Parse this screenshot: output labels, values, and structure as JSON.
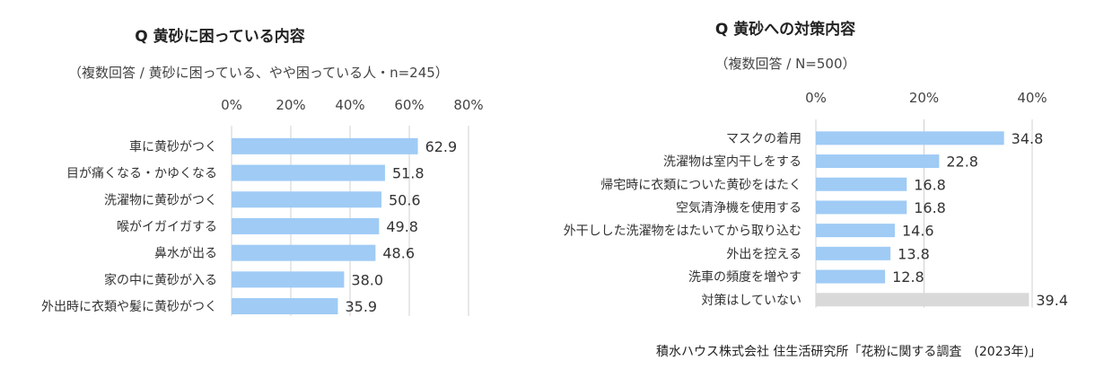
{
  "chart_data": [
    {
      "type": "bar",
      "orientation": "horizontal",
      "title": "Q 黄砂に困っている内容",
      "subtitle": "（複数回答 / 黄砂に困っている、やや困っている人・n=245）",
      "categories": [
        "車に黄砂がつく",
        "目が痛くなる・かゆくなる",
        "洗濯物に黄砂がつく",
        "喉がイガイガする",
        "鼻水が出る",
        "家の中に黄砂が入る",
        "外出時に衣類や髪に黄砂がつく"
      ],
      "values": [
        62.9,
        51.8,
        50.6,
        49.8,
        48.6,
        38.0,
        35.9
      ],
      "value_labels": [
        "62.9",
        "51.8",
        "50.6",
        "49.8",
        "48.6",
        "38.0",
        "35.9"
      ],
      "xlim": [
        0,
        80
      ],
      "ticks": [
        0,
        20,
        40,
        60,
        80
      ],
      "tick_labels": [
        "0%",
        "20%",
        "40%",
        "60%",
        "80%"
      ],
      "grid": true,
      "colors": [
        "#9fcbf5"
      ]
    },
    {
      "type": "bar",
      "orientation": "horizontal",
      "title": "Q 黄砂への対策内容",
      "subtitle": "（複数回答 / N=500）",
      "categories": [
        "マスクの着用",
        "洗濯物は室内干しをする",
        "帰宅時に衣類についた黄砂をはたく",
        "空気清浄機を使用する",
        "外干しした洗濯物をはたいてから取り込む",
        "外出を控える",
        "洗車の頻度を増やす",
        "対策はしていない"
      ],
      "values": [
        34.8,
        22.8,
        16.8,
        16.8,
        14.6,
        13.8,
        12.8,
        39.4
      ],
      "value_labels": [
        "34.8",
        "22.8",
        "16.8",
        "16.8",
        "14.6",
        "13.8",
        "12.8",
        "39.4"
      ],
      "xlim": [
        0,
        40
      ],
      "ticks": [
        0,
        20,
        40
      ],
      "tick_labels": [
        "0%",
        "20%",
        "40%"
      ],
      "grid": true,
      "colors": [
        "#9fcbf5",
        "#9fcbf5",
        "#9fcbf5",
        "#9fcbf5",
        "#9fcbf5",
        "#9fcbf5",
        "#9fcbf5",
        "#d9d9d9"
      ]
    }
  ],
  "source": "積水ハウス株式会社 住生活研究所「花粉に関する調査　(2023年)」"
}
